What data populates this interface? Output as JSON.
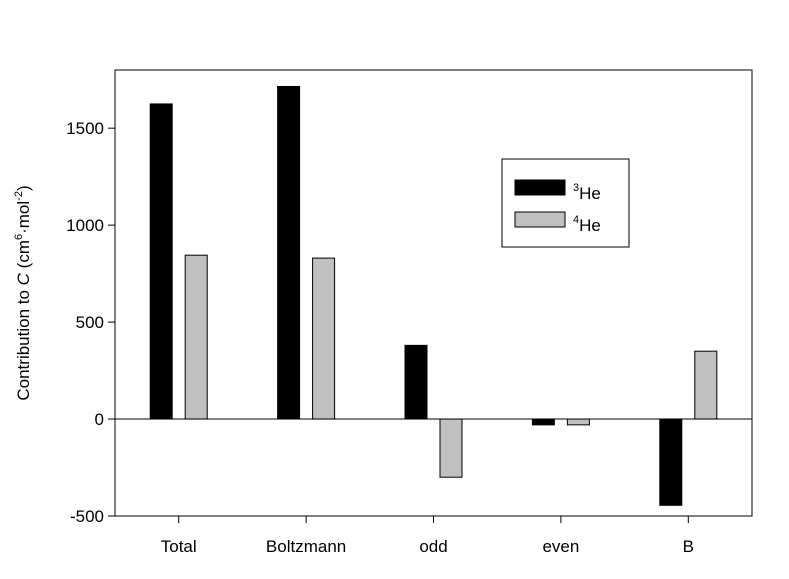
{
  "chart_data": {
    "type": "bar",
    "categories": [
      "Total",
      "Boltzmann",
      "odd",
      "even",
      "B"
    ],
    "series": [
      {
        "name_sup": "3",
        "name_main": "He",
        "color": "#000000",
        "values": [
          1625,
          1715,
          380,
          -30,
          -445
        ]
      },
      {
        "name_sup": "4",
        "name_main": "He",
        "color": "#c0c0c0",
        "values": [
          845,
          830,
          -300,
          -30,
          350
        ]
      }
    ],
    "ylabel": {
      "prefix": "Contribution to ",
      "var": "C",
      "unit_open": " (cm",
      "unit_exp1": "6",
      "unit_mid": "·mol",
      "unit_exp2": "-2",
      "unit_close": ")"
    },
    "ylim": [
      -500,
      1800
    ],
    "yticks": [
      -500,
      0,
      500,
      1000,
      1500
    ],
    "ytick_labels": [
      "-500",
      "0",
      "500",
      "1000",
      "1500"
    ],
    "zero_line": true,
    "grid": false,
    "legend_position": "top-right"
  }
}
